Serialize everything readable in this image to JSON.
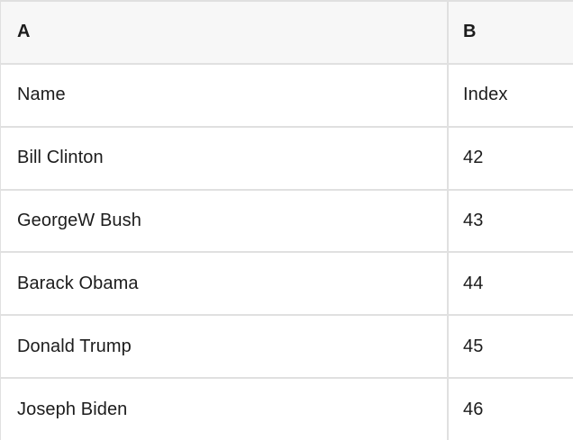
{
  "table": {
    "columns": [
      {
        "label": "A"
      },
      {
        "label": "B"
      }
    ],
    "rows": [
      {
        "a": "Name",
        "b": "Index"
      },
      {
        "a": "Bill Clinton",
        "b": "42"
      },
      {
        "a": "GeorgeW Bush",
        "b": "43"
      },
      {
        "a": "Barack Obama",
        "b": "44"
      },
      {
        "a": "Donald Trump",
        "b": "45"
      },
      {
        "a": "Joseph Biden",
        "b": "46"
      }
    ]
  },
  "colors": {
    "header_bg": "#f7f7f7",
    "border": "#e0e0e0",
    "text": "#1c1c1c",
    "background": "#ffffff"
  }
}
